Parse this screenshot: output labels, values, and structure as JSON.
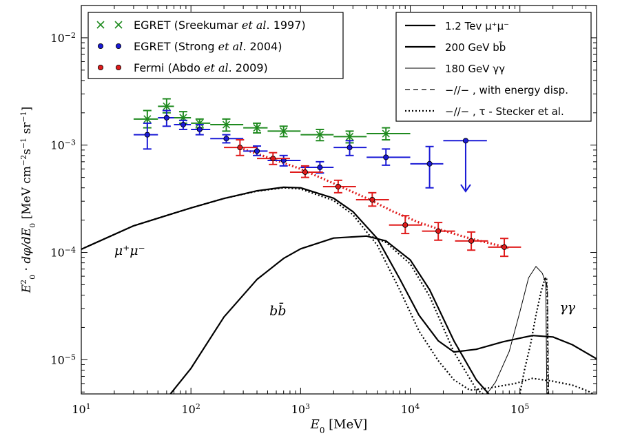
{
  "chart_data": {
    "type": "line",
    "scale": {
      "x": "log",
      "y": "log"
    },
    "xlim": [
      10,
      500000
    ],
    "ylim": [
      4.8e-06,
      0.02
    ],
    "xlabel": "E_0 [MeV]",
    "ylabel": "E_0^2 · dφ/dE_0 [MeV cm^-2 s^-1 sr^-1]",
    "x_ticks": [
      {
        "value": 10,
        "label": "10",
        "exp": "1"
      },
      {
        "value": 100,
        "label": "10",
        "exp": "2"
      },
      {
        "value": 1000,
        "label": "10",
        "exp": "3"
      },
      {
        "value": 10000,
        "label": "10",
        "exp": "4"
      },
      {
        "value": 100000,
        "label": "10",
        "exp": "5"
      }
    ],
    "y_ticks": [
      {
        "value": 1e-05,
        "label": "10",
        "exp": "−5"
      },
      {
        "value": 0.0001,
        "label": "10",
        "exp": "−4"
      },
      {
        "value": 0.001,
        "label": "10",
        "exp": "−3"
      },
      {
        "value": 0.01,
        "label": "10",
        "exp": "−2"
      }
    ],
    "annotations": [
      {
        "text": "μ⁺μ⁻",
        "x": 20,
        "y": 9.5e-05
      },
      {
        "text": "bb̄",
        "x": 520,
        "y": 2.6e-05
      },
      {
        "text": "γγ",
        "x": 230000,
        "y": 2.8e-05
      }
    ],
    "data_series": [
      {
        "name": "EGRET (Sreekumar et al. 1997)",
        "legend_prefix": "EGRET (Sreekumar ",
        "legend_italic": "et al",
        "legend_suffix": ". 1997)",
        "color": "#1f8a1f",
        "marker": "x",
        "points": [
          {
            "x": 40,
            "y": 0.00175,
            "xlo": 30,
            "xhi": 50,
            "ylo": 0.00145,
            "yhi": 0.0021
          },
          {
            "x": 60,
            "y": 0.0023,
            "xlo": 50,
            "xhi": 70,
            "ylo": 0.002,
            "yhi": 0.0027
          },
          {
            "x": 85,
            "y": 0.0018,
            "xlo": 70,
            "xhi": 100,
            "ylo": 0.0016,
            "yhi": 0.00205
          },
          {
            "x": 120,
            "y": 0.0016,
            "xlo": 100,
            "xhi": 150,
            "ylo": 0.00145,
            "yhi": 0.00175
          },
          {
            "x": 210,
            "y": 0.00155,
            "xlo": 150,
            "xhi": 300,
            "ylo": 0.00135,
            "yhi": 0.00175
          },
          {
            "x": 400,
            "y": 0.00145,
            "xlo": 300,
            "xhi": 500,
            "ylo": 0.0013,
            "yhi": 0.0016
          },
          {
            "x": 700,
            "y": 0.00135,
            "xlo": 500,
            "xhi": 1000,
            "ylo": 0.0012,
            "yhi": 0.0015
          },
          {
            "x": 1500,
            "y": 0.00125,
            "xlo": 1000,
            "xhi": 2000,
            "ylo": 0.0011,
            "yhi": 0.0014
          },
          {
            "x": 2800,
            "y": 0.0012,
            "xlo": 2000,
            "xhi": 4000,
            "ylo": 0.00105,
            "yhi": 0.00135
          },
          {
            "x": 6000,
            "y": 0.00128,
            "xlo": 4000,
            "xhi": 10000,
            "ylo": 0.00112,
            "yhi": 0.00145
          }
        ]
      },
      {
        "name": "EGRET (Strong et al. 2004)",
        "legend_prefix": "EGRET (Strong ",
        "legend_italic": "et al",
        "legend_suffix": ". 2004)",
        "color": "#1a1ad6",
        "marker": "o",
        "points": [
          {
            "x": 40,
            "y": 0.00125,
            "xlo": 30,
            "xhi": 50,
            "ylo": 0.00092,
            "yhi": 0.0016
          },
          {
            "x": 60,
            "y": 0.0018,
            "xlo": 50,
            "xhi": 70,
            "ylo": 0.0015,
            "yhi": 0.0021
          },
          {
            "x": 85,
            "y": 0.00155,
            "xlo": 70,
            "xhi": 100,
            "ylo": 0.0014,
            "yhi": 0.0017
          },
          {
            "x": 120,
            "y": 0.0014,
            "xlo": 100,
            "xhi": 150,
            "ylo": 0.00125,
            "yhi": 0.00155
          },
          {
            "x": 210,
            "y": 0.00115,
            "xlo": 150,
            "xhi": 300,
            "ylo": 0.00105,
            "yhi": 0.00125
          },
          {
            "x": 400,
            "y": 0.00088,
            "xlo": 300,
            "xhi": 500,
            "ylo": 0.0008,
            "yhi": 0.00098
          },
          {
            "x": 700,
            "y": 0.00072,
            "xlo": 500,
            "xhi": 1000,
            "ylo": 0.00064,
            "yhi": 0.0008
          },
          {
            "x": 1500,
            "y": 0.00062,
            "xlo": 1000,
            "xhi": 2000,
            "ylo": 0.00055,
            "yhi": 0.0007
          },
          {
            "x": 2800,
            "y": 0.00095,
            "xlo": 2000,
            "xhi": 4000,
            "ylo": 0.0008,
            "yhi": 0.0011
          },
          {
            "x": 6000,
            "y": 0.00077,
            "xlo": 4000,
            "xhi": 10000,
            "ylo": 0.00065,
            "yhi": 0.00092
          },
          {
            "x": 15000,
            "y": 0.00067,
            "xlo": 10000,
            "xhi": 20000,
            "ylo": 0.0004,
            "yhi": 0.00097
          },
          {
            "x": 32000,
            "y": 0.0011,
            "xlo": 20000,
            "xhi": 50000,
            "upper_limit": true,
            "arrow_to": 0.00037
          }
        ]
      },
      {
        "name": "Fermi (Abdo et al. 2009)",
        "legend_prefix": "Fermi (Abdo ",
        "legend_italic": "et al",
        "legend_suffix": ". 2009)",
        "color": "#e01b1b",
        "marker": "o",
        "points": [
          {
            "x": 280,
            "y": 0.00095,
            "xlo": 200,
            "xhi": 400,
            "ylo": 0.0008,
            "yhi": 0.00112
          },
          {
            "x": 560,
            "y": 0.00075,
            "xlo": 400,
            "xhi": 800,
            "ylo": 0.00066,
            "yhi": 0.00085
          },
          {
            "x": 1100,
            "y": 0.00056,
            "xlo": 800,
            "xhi": 1600,
            "ylo": 0.0005,
            "yhi": 0.00064
          },
          {
            "x": 2200,
            "y": 0.00041,
            "xlo": 1600,
            "xhi": 3200,
            "ylo": 0.00036,
            "yhi": 0.00047
          },
          {
            "x": 4500,
            "y": 0.00031,
            "xlo": 3200,
            "xhi": 6400,
            "ylo": 0.00027,
            "yhi": 0.00036
          },
          {
            "x": 9000,
            "y": 0.00018,
            "xlo": 6400,
            "xhi": 12800,
            "ylo": 0.00015,
            "yhi": 0.00022
          },
          {
            "x": 18000,
            "y": 0.000158,
            "xlo": 12800,
            "xhi": 25600,
            "ylo": 0.00013,
            "yhi": 0.00019
          },
          {
            "x": 36000,
            "y": 0.000128,
            "xlo": 25600,
            "xhi": 51200,
            "ylo": 0.000105,
            "yhi": 0.000155
          },
          {
            "x": 72000,
            "y": 0.000112,
            "xlo": 51200,
            "xhi": 102400,
            "ylo": 9.2e-05,
            "yhi": 0.000135
          }
        ]
      }
    ],
    "model_curves": [
      {
        "name": "1.2 Tev μ⁺μ⁻",
        "legend_label": "1.2 Tev μ⁺μ⁻",
        "style": "solid",
        "width": 2.2,
        "color": "#000000",
        "points": [
          [
            10,
            0.000107
          ],
          [
            30,
            0.000177
          ],
          [
            100,
            0.00026
          ],
          [
            200,
            0.000318
          ],
          [
            400,
            0.000375
          ],
          [
            700,
            0.000405
          ],
          [
            1000,
            0.0004
          ],
          [
            2000,
            0.00032
          ],
          [
            3000,
            0.00024
          ],
          [
            5000,
            0.000135
          ],
          [
            8000,
            5.7e-05
          ],
          [
            12000,
            2.6e-05
          ],
          [
            18000,
            1.5e-05
          ],
          [
            25000,
            1.18e-05
          ],
          [
            40000,
            1.25e-05
          ],
          [
            70000,
            1.47e-05
          ],
          [
            130000,
            1.68e-05
          ],
          [
            200000,
            1.63e-05
          ],
          [
            300000,
            1.38e-05
          ],
          [
            500000,
            1.02e-05
          ]
        ]
      },
      {
        "name": "200 GeV bb̄",
        "legend_label": "200 GeV bb̄",
        "style": "solid",
        "width": 2.2,
        "color": "#000000",
        "points": [
          [
            65,
            4.8e-06
          ],
          [
            100,
            8.3e-06
          ],
          [
            200,
            2.5e-05
          ],
          [
            400,
            5.6e-05
          ],
          [
            700,
            8.8e-05
          ],
          [
            1000,
            0.000108
          ],
          [
            2000,
            0.000136
          ],
          [
            4000,
            0.000142
          ],
          [
            6000,
            0.000128
          ],
          [
            10000,
            8.5e-05
          ],
          [
            15000,
            4.5e-05
          ],
          [
            25000,
            1.5e-05
          ],
          [
            40000,
            6.5e-06
          ],
          [
            52000,
            4.8e-06
          ]
        ]
      },
      {
        "name": "180 GeV γγ",
        "legend_label": "180 GeV γγ",
        "style": "solid",
        "width": 1.0,
        "color": "#000000",
        "points": [
          [
            50000,
            4.8e-06
          ],
          [
            60000,
            6.2e-06
          ],
          [
            80000,
            1.2e-05
          ],
          [
            100000,
            2.8e-05
          ],
          [
            120000,
            5.8e-05
          ],
          [
            140000,
            7.4e-05
          ],
          [
            160000,
            6.4e-05
          ],
          [
            172000,
            5.2e-05
          ],
          [
            176000,
            4.8e-06
          ]
        ]
      },
      {
        "name": "−//− , with energy disp.",
        "legend_label": "−//− , with energy disp.",
        "style": "dashed",
        "width": 1.2,
        "color": "#000000",
        "points": [
          [
            164000,
            5.6e-05
          ],
          [
            172000,
            5.8e-05
          ],
          [
            178000,
            4.5e-05
          ],
          [
            183000,
            4.8e-06
          ]
        ]
      },
      {
        "name": "μμ dotted (τ)",
        "legend_label": "−//− , τ - Stecker et al.",
        "style": "dotted",
        "width": 2.2,
        "color": "#000000",
        "points": [
          [
            10,
            0.000107
          ],
          [
            30,
            0.000177
          ],
          [
            100,
            0.00026
          ],
          [
            200,
            0.000318
          ],
          [
            400,
            0.000372
          ],
          [
            700,
            0.0004
          ],
          [
            1000,
            0.00039
          ],
          [
            2000,
            0.000305
          ],
          [
            3000,
            0.000225
          ],
          [
            5000,
            0.000117
          ],
          [
            8000,
            4.5e-05
          ],
          [
            12000,
            1.85e-05
          ],
          [
            18000,
            9.8e-06
          ],
          [
            25000,
            6.5e-06
          ],
          [
            35000,
            5.2e-06
          ],
          [
            55000,
            5.5e-06
          ],
          [
            90000,
            6e-06
          ],
          [
            130000,
            6.7e-06
          ],
          [
            200000,
            6.3e-06
          ],
          [
            300000,
            5.8e-06
          ],
          [
            400000,
            5.2e-06
          ],
          [
            470000,
            4.8e-06
          ]
        ]
      },
      {
        "name": "bb dotted (τ)",
        "legend_label": "",
        "style": "dotted",
        "width": 2.2,
        "color": "#000000",
        "points": [
          [
            4500,
            0.00014
          ],
          [
            6000,
            0.000124
          ],
          [
            10000,
            7.8e-05
          ],
          [
            15000,
            3.9e-05
          ],
          [
            25000,
            1.18e-05
          ],
          [
            40000,
            5.3e-06
          ],
          [
            46000,
            4.8e-06
          ]
        ]
      },
      {
        "name": "γγ dotted (τ)",
        "legend_label": "",
        "style": "dotted",
        "width": 2.2,
        "color": "#000000",
        "points": [
          [
            100000,
            4.8e-06
          ],
          [
            110000,
            8e-06
          ],
          [
            125000,
            1.4e-05
          ],
          [
            140000,
            2.6e-05
          ],
          [
            155000,
            4.2e-05
          ],
          [
            168000,
            5.6e-05
          ],
          [
            175000,
            5.8e-05
          ],
          [
            178000,
            3.5e-05
          ],
          [
            180000,
            4.8e-06
          ]
        ]
      },
      {
        "name": "Fermi red dotted (τ)",
        "legend_label": "",
        "style": "dotted",
        "width": 3.2,
        "color": "#e01b1b",
        "points": [
          [
            300,
            0.00092
          ],
          [
            600,
            0.00072
          ],
          [
            1000,
            0.0006
          ],
          [
            2000,
            0.00044
          ],
          [
            4000,
            0.00032
          ],
          [
            7000,
            0.00024
          ],
          [
            12000,
            0.00019
          ],
          [
            20000,
            0.00016
          ],
          [
            35000,
            0.000135
          ],
          [
            60000,
            0.000118
          ],
          [
            80000,
            0.00011
          ]
        ]
      }
    ]
  }
}
